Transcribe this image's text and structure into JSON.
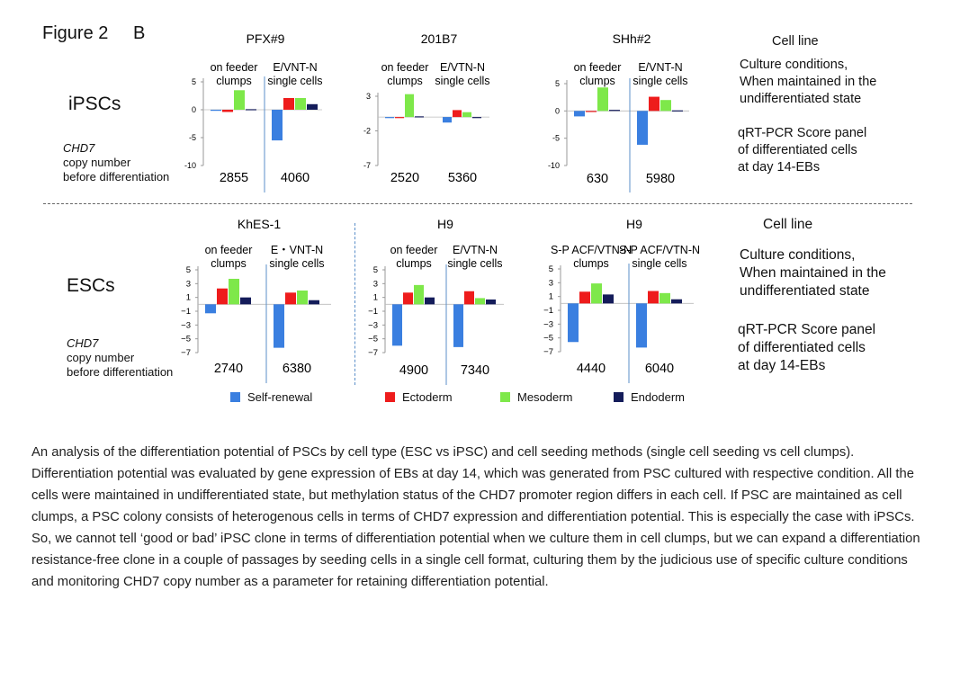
{
  "figure": {
    "title": "Figure 2",
    "panel": "B"
  },
  "rows": {
    "ipsc": {
      "label": "iPSCs",
      "chd7_gene": "CHD7",
      "chd7_desc": "copy number",
      "chd7_desc2": "before differentiation",
      "side_cell_line": "Cell line",
      "side_cond": [
        "Culture conditions,",
        "When maintained in the",
        "undifferentiated state"
      ],
      "side_qrt": [
        "qRT-PCR Score panel",
        "of differentiated cells",
        "at day 14-EBs"
      ]
    },
    "esc": {
      "label": "ESCs",
      "chd7_gene": "CHD7",
      "chd7_desc": "copy number",
      "chd7_desc2": "before differentiation",
      "side_cell_line": "Cell line",
      "side_cond": [
        "Culture conditions,",
        "When maintained in the",
        "undifferentiated state"
      ],
      "side_qrt": [
        "qRT-PCR Score panel",
        "of differentiated cells",
        "at day 14-EBs"
      ]
    }
  },
  "legend": [
    {
      "name": "Self-renewal",
      "color": "#3a7fe0"
    },
    {
      "name": "Ectoderm",
      "color": "#ee1c1c"
    },
    {
      "name": "Mesoderm",
      "color": "#7ee84a"
    },
    {
      "name": "Endoderm",
      "color": "#141c5a"
    }
  ],
  "caption": "An analysis of the differentiation potential of PSCs by cell type (ESC vs iPSC) and cell seeding methods (single cell seeding vs cell clumps). Differentiation potential was evaluated by gene expression of EBs at day 14, which was generated from PSC cultured with respective condition. All the cells were maintained in undifferentiated state, but methylation status of the CHD7 promoter region differs in each cell. If PSC are maintained as cell clumps, a PSC colony consists of heterogenous cells in terms of CHD7 expression and differentiation potential. This is especially the case with iPSCs. So, we cannot tell ‘good or bad’ iPSC clone in terms of differentiation potential when we culture them in cell clumps, but we can expand a differentiation resistance-free clone in a couple of passages by seeding cells in a single cell format, culturing them by the judicious use of specific culture conditions and monitoring CHD7 copy number as a parameter for retaining differentiation potential.",
  "chart_data": [
    {
      "type": "bar",
      "title": "PFX#9",
      "yticks": [
        5,
        0,
        -5,
        -10
      ],
      "ylim": [
        -10,
        5
      ],
      "groups": [
        {
          "label": [
            "on feeder",
            "clumps"
          ],
          "copy_number": "2855",
          "values": [
            0,
            -0.4,
            3.5,
            0.1
          ]
        },
        {
          "label": [
            "E/VNT-N",
            "single cells"
          ],
          "copy_number": "4060",
          "values": [
            -5.5,
            2.1,
            2.1,
            1.0
          ]
        }
      ]
    },
    {
      "type": "bar",
      "title": "201B7",
      "yticks": [
        3,
        -2,
        -7
      ],
      "ylim": [
        -7,
        3
      ],
      "groups": [
        {
          "label": [
            "on feeder",
            "clumps"
          ],
          "copy_number": "2520",
          "values": [
            0,
            0,
            3.3,
            0.1
          ]
        },
        {
          "label": [
            "E/VTN-N",
            "single cells"
          ],
          "copy_number": "5360",
          "values": [
            -0.8,
            1.0,
            0.7,
            0
          ]
        }
      ]
    },
    {
      "type": "bar",
      "title": "SHh#2",
      "yticks": [
        5,
        0,
        -5,
        -10
      ],
      "ylim": [
        -10,
        5
      ],
      "groups": [
        {
          "label": [
            "on feeder",
            "clumps"
          ],
          "copy_number": "630",
          "values": [
            -1.0,
            0,
            4.3,
            0.2
          ]
        },
        {
          "label": [
            "E/VNT-N",
            "single cells"
          ],
          "copy_number": "5980",
          "values": [
            -6.2,
            2.6,
            2.0,
            0.1
          ]
        }
      ]
    },
    {
      "type": "bar",
      "title": "KhES-1",
      "yticks": [
        5,
        3,
        1,
        -1,
        -3,
        -5,
        -7
      ],
      "ylim": [
        -7,
        5
      ],
      "groups": [
        {
          "label": [
            "on feeder",
            "clumps"
          ],
          "copy_number": "2740",
          "values": [
            -1.3,
            2.3,
            3.7,
            1.0
          ]
        },
        {
          "label": [
            "E・VNT-N",
            "single cells"
          ],
          "copy_number": "6380",
          "values": [
            -6.3,
            1.7,
            2.0,
            0.6
          ]
        }
      ]
    },
    {
      "type": "bar",
      "title": "H9",
      "yticks": [
        5,
        3,
        1,
        -1,
        -3,
        -5,
        -7
      ],
      "ylim": [
        -7,
        5
      ],
      "groups": [
        {
          "label": [
            "on feeder",
            "clumps"
          ],
          "copy_number": "4900",
          "values": [
            -6.0,
            1.7,
            2.8,
            1.0
          ]
        },
        {
          "label": [
            "E/VTN-N",
            "single cells"
          ],
          "copy_number": "7340",
          "values": [
            -6.2,
            1.9,
            0.9,
            0.7
          ]
        }
      ]
    },
    {
      "type": "bar",
      "title": "H9",
      "yticks": [
        5,
        3,
        1,
        -1,
        -3,
        -5,
        -7
      ],
      "ylim": [
        -7,
        5
      ],
      "groups": [
        {
          "label": [
            "S-P ACF/VTN-N",
            "clumps"
          ],
          "copy_number": "4440",
          "values": [
            -5.6,
            1.7,
            2.9,
            1.3
          ]
        },
        {
          "label": [
            "S-P ACF/VTN-N",
            "single cells"
          ],
          "copy_number": "6040",
          "values": [
            -6.4,
            1.8,
            1.5,
            0.6
          ]
        }
      ]
    }
  ]
}
